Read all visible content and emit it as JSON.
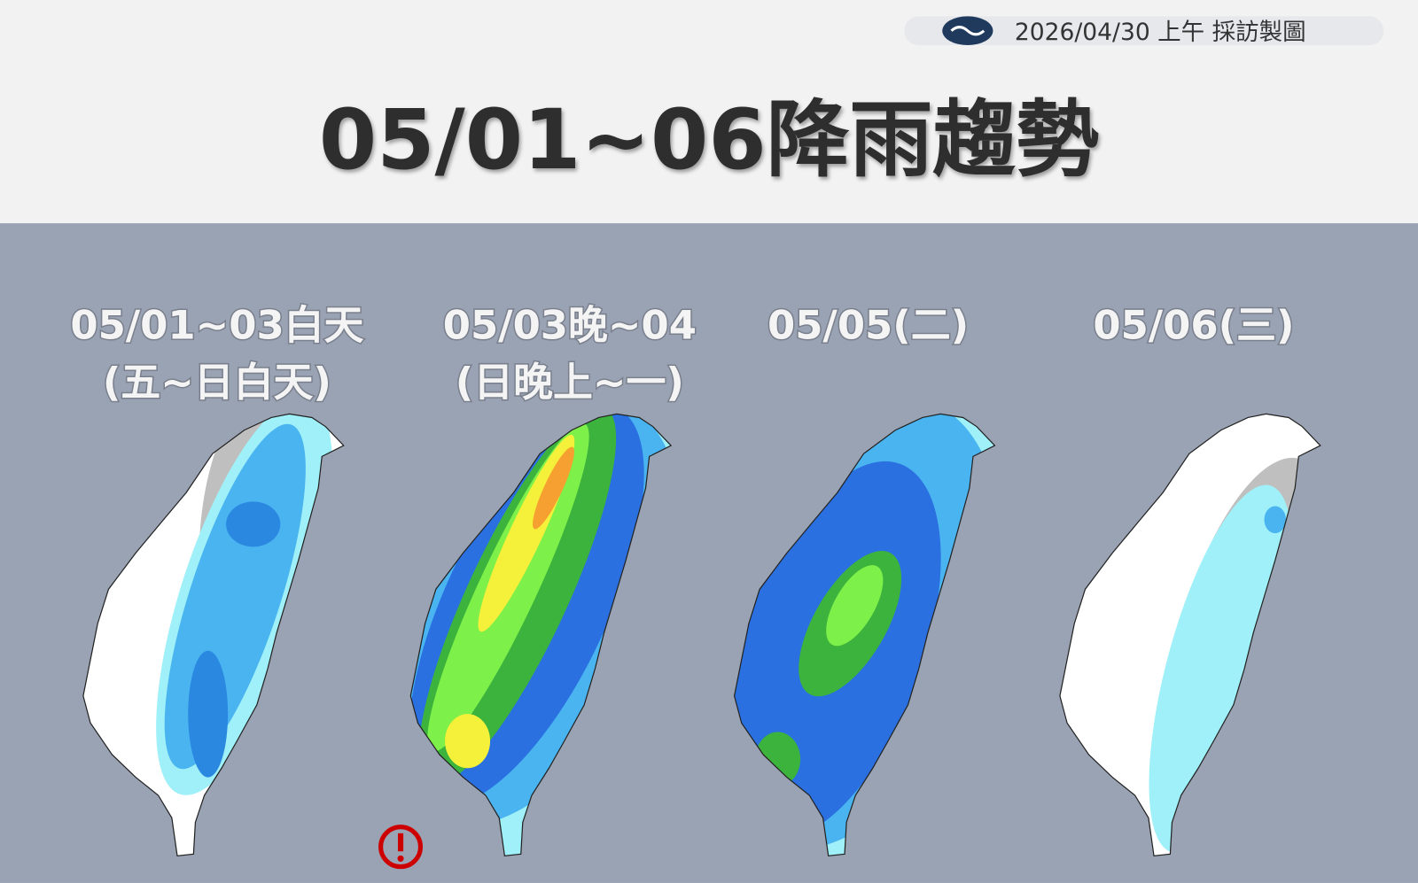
{
  "header": {
    "date_stamp": "2026/04/30 上午 採訪製圖",
    "title": "05/01~06降雨趨勢"
  },
  "panels": [
    {
      "label_lines": [
        "05/01~03白天",
        "(五~日白天)"
      ]
    },
    {
      "label_lines": [
        "05/03晚~04",
        "(日晚上~一)"
      ]
    },
    {
      "label_lines": [
        "05/05(二)"
      ]
    },
    {
      "label_lines": [
        "05/06(三)"
      ]
    }
  ]
}
